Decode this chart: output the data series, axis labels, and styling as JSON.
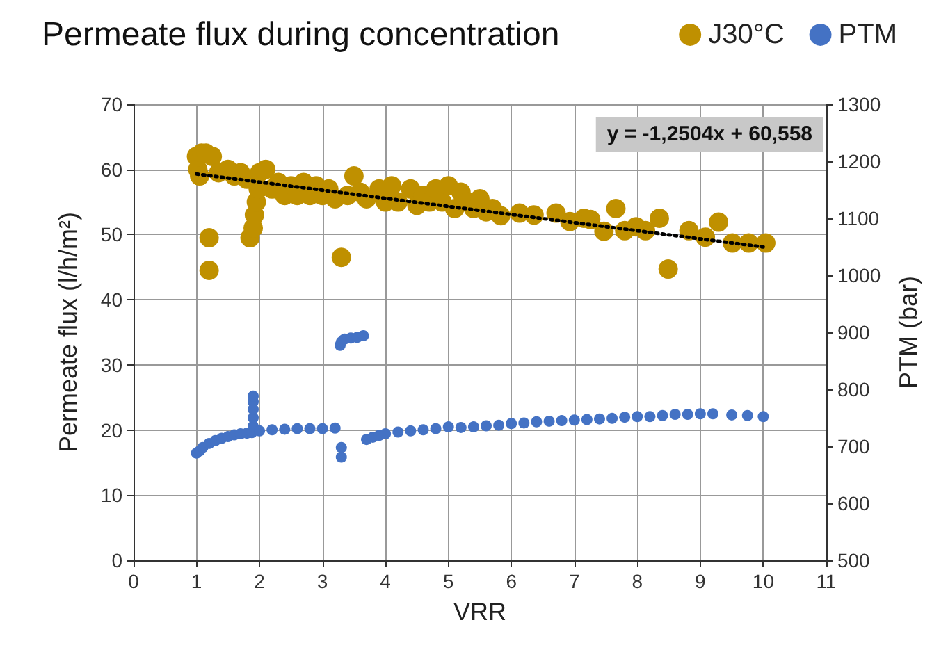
{
  "chart_data": {
    "type": "scatter",
    "title": "Permeate flux during concentration",
    "xlabel": "VRR",
    "ylabel": "Permeate flux (l/h/m²)",
    "y2label": "PTM (bar)",
    "xlim": [
      0,
      11
    ],
    "xticks": [
      0,
      1,
      2,
      3,
      4,
      5,
      6,
      7,
      8,
      9,
      10,
      11
    ],
    "ylim": [
      0,
      70
    ],
    "yticks": [
      0,
      10,
      20,
      30,
      40,
      50,
      60,
      70
    ],
    "y2lim": [
      500,
      1300
    ],
    "y2ticks": [
      500,
      600,
      700,
      800,
      900,
      1000,
      1100,
      1200,
      1300
    ],
    "grid": true,
    "legend": "top right",
    "marker": "circle",
    "annotations": [
      "y = -1,2504x + 60,558"
    ],
    "series": [
      {
        "name": "J30°C",
        "color": "#bf9000",
        "x": [
          1.0,
          1.02,
          1.05,
          1.08,
          1.15,
          1.25,
          1.35,
          1.5,
          1.6,
          1.7,
          1.8,
          1.2,
          1.2,
          1.85,
          1.9,
          1.92,
          1.95,
          1.98,
          2.0,
          2.1,
          2.2,
          2.3,
          2.4,
          2.5,
          2.6,
          2.7,
          2.8,
          2.9,
          3.0,
          3.1,
          3.2,
          3.3,
          3.4,
          3.5,
          3.6,
          3.7,
          3.9,
          4.0,
          4.1,
          4.2,
          4.4,
          4.5,
          4.6,
          4.7,
          4.8,
          4.9,
          5.0,
          5.1,
          5.2,
          5.3,
          5.4,
          5.5,
          5.6,
          5.7,
          5.83,
          6.13,
          6.36,
          6.71,
          6.93,
          7.15,
          7.26,
          7.47,
          7.66,
          7.8,
          7.98,
          8.13,
          8.35,
          8.49,
          8.82,
          9.08,
          9.29,
          9.51,
          9.77,
          10.04
        ],
        "values": [
          62,
          60,
          59,
          62.5,
          62.5,
          62,
          59.5,
          60,
          59,
          59.5,
          58.5,
          49.5,
          44.5,
          49.5,
          51,
          53,
          55,
          57,
          59.5,
          60,
          57,
          58,
          56,
          57.5,
          56,
          58,
          56,
          57.5,
          56,
          57,
          55.5,
          46.5,
          56,
          59,
          56.5,
          55.5,
          57,
          55,
          57.5,
          55,
          57,
          54.5,
          56,
          55,
          57,
          55,
          57.5,
          54,
          56.5,
          55,
          54,
          55.5,
          53.5,
          54,
          52.9,
          53.3,
          53,
          53.3,
          52,
          52.5,
          52.3,
          50.5,
          54,
          50.6,
          51.2,
          50.6,
          52.5,
          44.7,
          50.6,
          49.6,
          51.9,
          48.7,
          48.7,
          48.7
        ]
      },
      {
        "name": "PTM",
        "color": "#4472c4",
        "axis": "y2",
        "x": [
          1.0,
          1.05,
          1.1,
          1.2,
          1.3,
          1.4,
          1.5,
          1.6,
          1.7,
          1.8,
          1.88,
          1.9,
          1.9,
          1.9,
          1.9,
          1.9,
          2.0,
          2.2,
          2.4,
          2.6,
          2.8,
          3.0,
          3.2,
          3.3,
          3.3,
          3.28,
          3.3,
          3.35,
          3.45,
          3.55,
          3.65,
          3.7,
          3.8,
          3.9,
          4.0,
          4.2,
          4.4,
          4.6,
          4.8,
          5.0,
          5.2,
          5.4,
          5.6,
          5.8,
          6.0,
          6.2,
          6.4,
          6.6,
          6.8,
          7.0,
          7.2,
          7.4,
          7.6,
          7.8,
          8.0,
          8.2,
          8.4,
          8.6,
          8.8,
          9.0,
          9.2,
          9.5,
          9.75,
          10.0
        ],
        "values": [
          688,
          692,
          698,
          705,
          710,
          714,
          717,
          720,
          722,
          723,
          724,
          735,
          750,
          765,
          778,
          788,
          727,
          729,
          730,
          731,
          731,
          731,
          732,
          698,
          681,
          877,
          883,
          888,
          890,
          891,
          894,
          712,
          716,
          719,
          722,
          725,
          727,
          729,
          731,
          734,
          733,
          734,
          736,
          737,
          740,
          741,
          743,
          744,
          745,
          746,
          747,
          748,
          749,
          751,
          752,
          752,
          754,
          756,
          756,
          757,
          757,
          755,
          754,
          752
        ]
      },
      {
        "type": "line",
        "color": "#000000",
        "marker": "none",
        "line_style": "dotted",
        "x": [
          1,
          10
        ],
        "values": [
          59.3,
          48.1
        ]
      }
    ]
  }
}
